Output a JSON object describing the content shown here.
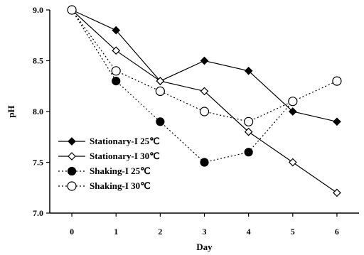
{
  "chart_data": {
    "type": "line",
    "xlabel": "Day",
    "ylabel": "pH",
    "x": [
      0,
      1,
      2,
      3,
      4,
      5,
      6
    ],
    "xlim": [
      -0.5,
      6.5
    ],
    "ylim": [
      7.0,
      9.0
    ],
    "yticks": [
      "7.0",
      "7.5",
      "8.0",
      "8.5",
      "9.0"
    ],
    "xticks": [
      "0",
      "1",
      "2",
      "3",
      "4",
      "5",
      "6"
    ],
    "grid": false,
    "legend_position": "bottom-left",
    "series": [
      {
        "name": "Stationary-I 25℃",
        "values": [
          9.0,
          8.8,
          8.3,
          8.5,
          8.4,
          8.0,
          7.9
        ],
        "marker": "diamond-filled",
        "line": "solid"
      },
      {
        "name": "Stationary-I 30℃",
        "values": [
          9.0,
          8.6,
          8.3,
          8.2,
          7.8,
          7.5,
          7.2
        ],
        "marker": "diamond-open",
        "line": "solid"
      },
      {
        "name": "Shaking-I 25℃",
        "values": [
          9.0,
          8.3,
          7.9,
          7.5,
          7.6,
          8.1,
          null
        ],
        "marker": "circle-filled",
        "line": "dotted"
      },
      {
        "name": "Shaking-I 30℃",
        "values": [
          9.0,
          8.4,
          8.2,
          8.0,
          7.9,
          8.1,
          8.3
        ],
        "marker": "circle-open",
        "line": "dotted"
      }
    ]
  }
}
